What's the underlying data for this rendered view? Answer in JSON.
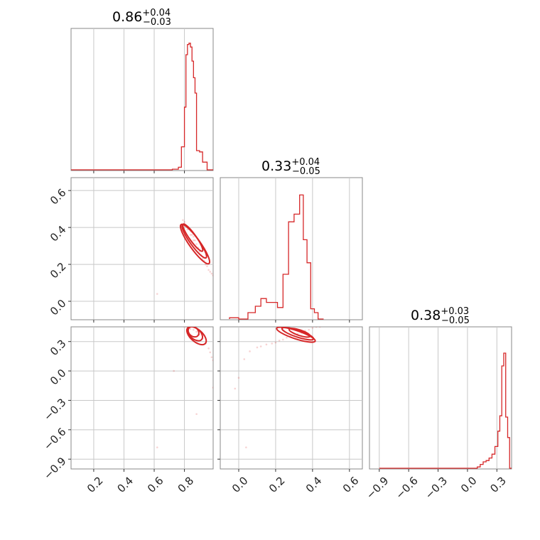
{
  "chart_data": {
    "type": "corner",
    "colors": {
      "series": "#d62728",
      "grid": "#c8c8c8",
      "frame": "#888888"
    },
    "grid": true,
    "params": [
      {
        "title": {
          "median": "0.86",
          "upper": "+0.04",
          "lower": "−0.03"
        },
        "lim": [
          0.05,
          0.99
        ],
        "ticks": [
          0.2,
          0.4,
          0.6,
          0.8
        ],
        "tick_labels": [
          "0.2",
          "0.4",
          "0.6",
          "0.8"
        ],
        "hist": {
          "edges": [
            0.05,
            0.72,
            0.76,
            0.78,
            0.8,
            0.81,
            0.82,
            0.83,
            0.84,
            0.85,
            0.86,
            0.87,
            0.88,
            0.89,
            0.9,
            0.91,
            0.92,
            0.95,
            0.97,
            0.99
          ],
          "values": [
            0,
            0.005,
            0.02,
            0.18,
            0.49,
            0.9,
            0.98,
            0.99,
            0.96,
            0.85,
            0.72,
            0.6,
            0.15,
            0.15,
            0.14,
            0.14,
            0.06,
            0.0,
            0.0
          ]
        }
      },
      {
        "title": {
          "median": "0.33",
          "upper": "+0.04",
          "lower": "−0.05"
        },
        "lim": [
          -0.1,
          0.67
        ],
        "ticks": [
          0.0,
          0.2,
          0.4,
          0.6
        ],
        "tick_labels": [
          "0.0",
          "0.2",
          "0.4",
          "0.6"
        ],
        "hist": {
          "edges": [
            -0.05,
            0.0,
            0.05,
            0.09,
            0.12,
            0.15,
            0.18,
            0.21,
            0.24,
            0.27,
            0.3,
            0.33,
            0.35,
            0.37,
            0.39,
            0.41,
            0.43,
            0.46
          ],
          "values": [
            0.01,
            0.0,
            0.05,
            0.1,
            0.16,
            0.13,
            0.13,
            0.09,
            0.35,
            0.76,
            0.82,
            0.97,
            0.62,
            0.44,
            0.08,
            0.05,
            0.0
          ]
        }
      },
      {
        "title": {
          "median": "0.38",
          "upper": "+0.03",
          "lower": "−0.05"
        },
        "lim": [
          -1.0,
          0.45
        ],
        "ticks": [
          -0.9,
          -0.6,
          -0.3,
          0.0,
          0.3
        ],
        "tick_labels": [
          "−0.9",
          "−0.6",
          "−0.3",
          "0.0",
          "0.3"
        ],
        "hist": {
          "edges": [
            -0.9,
            0.1,
            0.13,
            0.16,
            0.19,
            0.22,
            0.25,
            0.28,
            0.31,
            0.33,
            0.35,
            0.37,
            0.39,
            0.41,
            0.43,
            0.45
          ],
          "values": [
            0,
            0.01,
            0.03,
            0.05,
            0.06,
            0.08,
            0.11,
            0.17,
            0.29,
            0.41,
            0.8,
            0.9,
            0.4,
            0.24,
            0.0
          ]
        }
      }
    ],
    "scatter": {
      "p1_p0": {
        "points": [
          [
            0.79,
            0.44
          ],
          [
            0.8,
            0.42
          ],
          [
            0.81,
            0.41
          ],
          [
            0.82,
            0.4
          ],
          [
            0.83,
            0.39
          ],
          [
            0.84,
            0.38
          ],
          [
            0.85,
            0.36
          ],
          [
            0.86,
            0.35
          ],
          [
            0.87,
            0.33
          ],
          [
            0.88,
            0.31
          ],
          [
            0.89,
            0.29
          ],
          [
            0.9,
            0.27
          ],
          [
            0.91,
            0.25
          ],
          [
            0.92,
            0.23
          ],
          [
            0.93,
            0.22
          ],
          [
            0.94,
            0.2
          ],
          [
            0.95,
            0.19
          ],
          [
            0.96,
            0.17
          ],
          [
            0.97,
            0.16
          ],
          [
            0.98,
            0.15
          ],
          [
            0.8,
            0.43
          ],
          [
            0.82,
            0.39
          ],
          [
            0.84,
            0.36
          ],
          [
            0.86,
            0.33
          ],
          [
            0.88,
            0.29
          ],
          [
            0.62,
            0.04
          ],
          [
            0.99,
            0.14
          ]
        ],
        "contours": [
          {
            "center": [
              0.855,
              0.345
            ],
            "rx": 0.022,
            "ry": 0.09,
            "rot": -0.62
          },
          {
            "center": [
              0.865,
              0.325
            ],
            "rx": 0.028,
            "ry": 0.11,
            "rot": -0.62
          },
          {
            "center": [
              0.87,
              0.31
            ],
            "rx": 0.035,
            "ry": 0.13,
            "rot": -0.62
          }
        ]
      },
      "p2_p0": {
        "points": [
          [
            0.82,
            0.45
          ],
          [
            0.84,
            0.43
          ],
          [
            0.86,
            0.42
          ],
          [
            0.88,
            0.4
          ],
          [
            0.9,
            0.37
          ],
          [
            0.92,
            0.33
          ],
          [
            0.94,
            0.28
          ],
          [
            0.96,
            0.23
          ],
          [
            0.97,
            0.19
          ],
          [
            0.98,
            0.14
          ],
          [
            0.99,
            0.11
          ],
          [
            0.8,
            0.45
          ],
          [
            0.62,
            -0.78
          ],
          [
            0.88,
            -0.44
          ],
          [
            0.73,
            0.0
          ],
          [
            0.99,
            -0.17
          ]
        ],
        "contours": [
          {
            "center": [
              0.86,
              0.4
            ],
            "rx": 0.03,
            "ry": 0.06,
            "rot": -0.85
          },
          {
            "center": [
              0.87,
              0.38
            ],
            "rx": 0.035,
            "ry": 0.09,
            "rot": -0.85
          },
          {
            "center": [
              0.88,
              0.36
            ],
            "rx": 0.04,
            "ry": 0.12,
            "rot": -0.85
          }
        ]
      },
      "p2_p1": {
        "points": [
          [
            0.12,
            0.25
          ],
          [
            0.15,
            0.27
          ],
          [
            0.18,
            0.28
          ],
          [
            0.2,
            0.29
          ],
          [
            0.22,
            0.31
          ],
          [
            0.24,
            0.32
          ],
          [
            0.26,
            0.34
          ],
          [
            0.28,
            0.35
          ],
          [
            0.3,
            0.36
          ],
          [
            0.32,
            0.38
          ],
          [
            0.34,
            0.39
          ],
          [
            0.36,
            0.41
          ],
          [
            0.38,
            0.42
          ],
          [
            0.4,
            0.44
          ],
          [
            0.42,
            0.45
          ],
          [
            0.44,
            0.45
          ],
          [
            0.06,
            0.2
          ],
          [
            0.03,
            0.12
          ],
          [
            -0.02,
            -0.18
          ],
          [
            0.0,
            -0.07
          ],
          [
            0.04,
            -0.78
          ],
          [
            0.1,
            0.24
          ]
        ],
        "contours": [
          {
            "center": [
              0.33,
              0.39
            ],
            "rx": 0.06,
            "ry": 0.028,
            "rot": 0.32
          },
          {
            "center": [
              0.32,
              0.38
            ],
            "rx": 0.09,
            "ry": 0.035,
            "rot": 0.32
          },
          {
            "center": [
              0.31,
              0.37
            ],
            "rx": 0.11,
            "ry": 0.042,
            "rot": 0.32
          }
        ]
      }
    }
  }
}
